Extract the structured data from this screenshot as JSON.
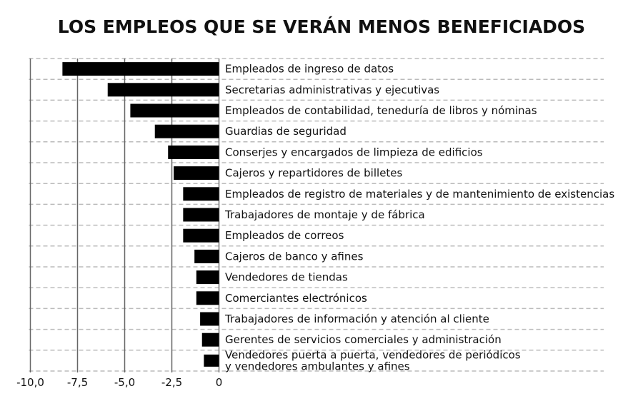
{
  "chart_data": {
    "type": "bar",
    "orientation": "horizontal",
    "title": "LOS EMPLEOS QUE SE VERÁN MENOS BENEFICIADOS",
    "xlabel": "",
    "ylabel": "",
    "xlim": [
      -10,
      0
    ],
    "x_ticks": [
      -10,
      -7.5,
      -5,
      -2.5,
      0
    ],
    "x_tick_labels": [
      "-10,0",
      "-7,5",
      "-5,0",
      "-2,5",
      "0"
    ],
    "grid": true,
    "bar_color": "#000000",
    "categories": [
      [
        "Empleados de ingreso de datos"
      ],
      [
        "Secretarias administrativas y ejecutivas"
      ],
      [
        "Empleados de contabilidad, teneduría de libros y nóminas"
      ],
      [
        "Guardias de seguridad"
      ],
      [
        "Conserjes y encargados de limpieza de edificios"
      ],
      [
        "Cajeros y repartidores de billetes"
      ],
      [
        "Empleados de registro de materiales y de mantenimiento de existencias"
      ],
      [
        "Trabajadores de montaje y de fábrica"
      ],
      [
        "Empleados de correos"
      ],
      [
        "Cajeros de banco y afines"
      ],
      [
        "Vendedores de tiendas"
      ],
      [
        "Comerciantes electrónicos"
      ],
      [
        "Trabajadores de información y atención al cliente"
      ],
      [
        "Gerentes de servicios comerciales y administración"
      ],
      [
        "Vendedores puerta a puerta, vendedores de periódicos",
        "y vendedores ambulantes y afines"
      ]
    ],
    "values": [
      -8.3,
      -5.9,
      -4.7,
      -3.4,
      -2.7,
      -2.4,
      -1.9,
      -1.9,
      -1.9,
      -1.3,
      -1.2,
      -1.2,
      -1.0,
      -0.9,
      -0.8
    ]
  }
}
